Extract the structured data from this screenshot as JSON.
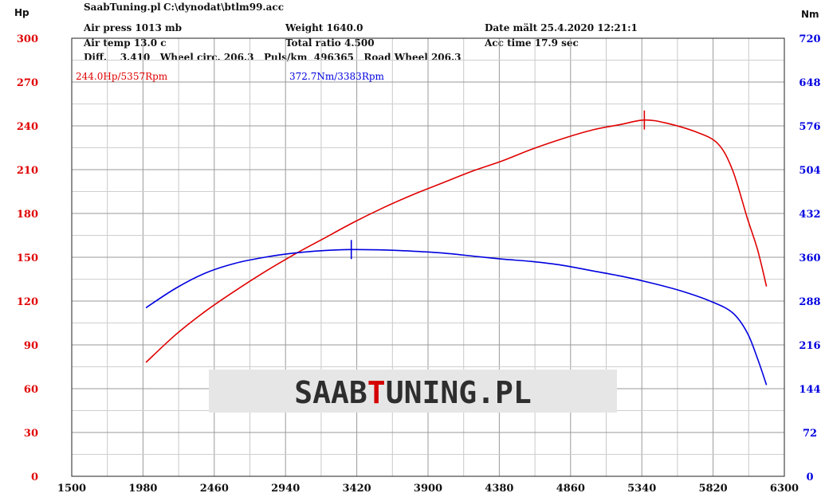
{
  "header": {
    "app": "SaabTuning.pl",
    "file": "C:\\dynodat\\btlm99.acc",
    "air_press": "Air press  1013 mb",
    "air_temp": "Air temp  13.0 c",
    "diff": "Diff.    3.410   Wheel circ. 206.3   Puls/km  496365   Road Wheel 206.3",
    "weight": "Weight  1640.0",
    "total_ratio": "Total ratio 4.500",
    "date": "Date mält 25.4.2020 12:21:1",
    "acc_time": "Acc time  17.9 sec"
  },
  "logo": {
    "prefix": "SAAB",
    "highlight": "T",
    "suffix": "UNING.PL",
    "colors": {
      "main": "#2e2e2e",
      "highlight": "#d40000"
    }
  },
  "chart_data": {
    "type": "line",
    "left_unit": "Hp",
    "right_unit": "Nm",
    "x_ticks": [
      "1500",
      "1980",
      "2460",
      "2940",
      "3420",
      "3900",
      "4380",
      "4860",
      "5340",
      "5820",
      "6300"
    ],
    "left_ticks": [
      "0",
      "30",
      "60",
      "90",
      "120",
      "150",
      "180",
      "210",
      "240",
      "270",
      "300"
    ],
    "right_ticks": [
      "0",
      "72",
      "144",
      "216",
      "288",
      "360",
      "432",
      "504",
      "576",
      "648",
      "720"
    ],
    "xlim": [
      1500,
      6300
    ],
    "ylim_left": [
      0,
      300
    ],
    "ylim_right": [
      0,
      720
    ],
    "grid": true,
    "colors": {
      "hp": "#e00000",
      "nm": "#0000e0"
    },
    "series": [
      {
        "name": "Hp",
        "axis": "left",
        "x": [
          2000,
          2200,
          2400,
          2600,
          2800,
          3000,
          3200,
          3400,
          3600,
          3800,
          4000,
          4200,
          4400,
          4600,
          4800,
          5000,
          5200,
          5357,
          5500,
          5700,
          5850,
          5950,
          6050,
          6120,
          6180
        ],
        "y": [
          78,
          97,
          113,
          127,
          140,
          152,
          163,
          174,
          184,
          193,
          201,
          209,
          216,
          224,
          231,
          237,
          241,
          244,
          242,
          236,
          228,
          210,
          177,
          155,
          130
        ]
      },
      {
        "name": "Nm",
        "axis": "right",
        "x": [
          2000,
          2200,
          2400,
          2600,
          2800,
          3000,
          3200,
          3383,
          3600,
          3800,
          4000,
          4200,
          4400,
          4600,
          4800,
          5000,
          5200,
          5400,
          5600,
          5800,
          5950,
          6050,
          6120,
          6180
        ],
        "y": [
          277,
          309,
          334,
          350,
          360,
          367,
          371,
          372.7,
          372,
          370,
          367,
          362,
          357,
          353,
          347,
          338,
          329,
          318,
          305,
          288,
          269,
          236,
          193,
          150
        ]
      }
    ],
    "peaks": [
      {
        "series": "Hp",
        "label": "244.0Hp/5357Rpm",
        "x": 5357,
        "y": 244.0
      },
      {
        "series": "Nm",
        "label": "372.7Nm/3383Rpm",
        "x": 3383,
        "y": 372.7
      }
    ]
  }
}
